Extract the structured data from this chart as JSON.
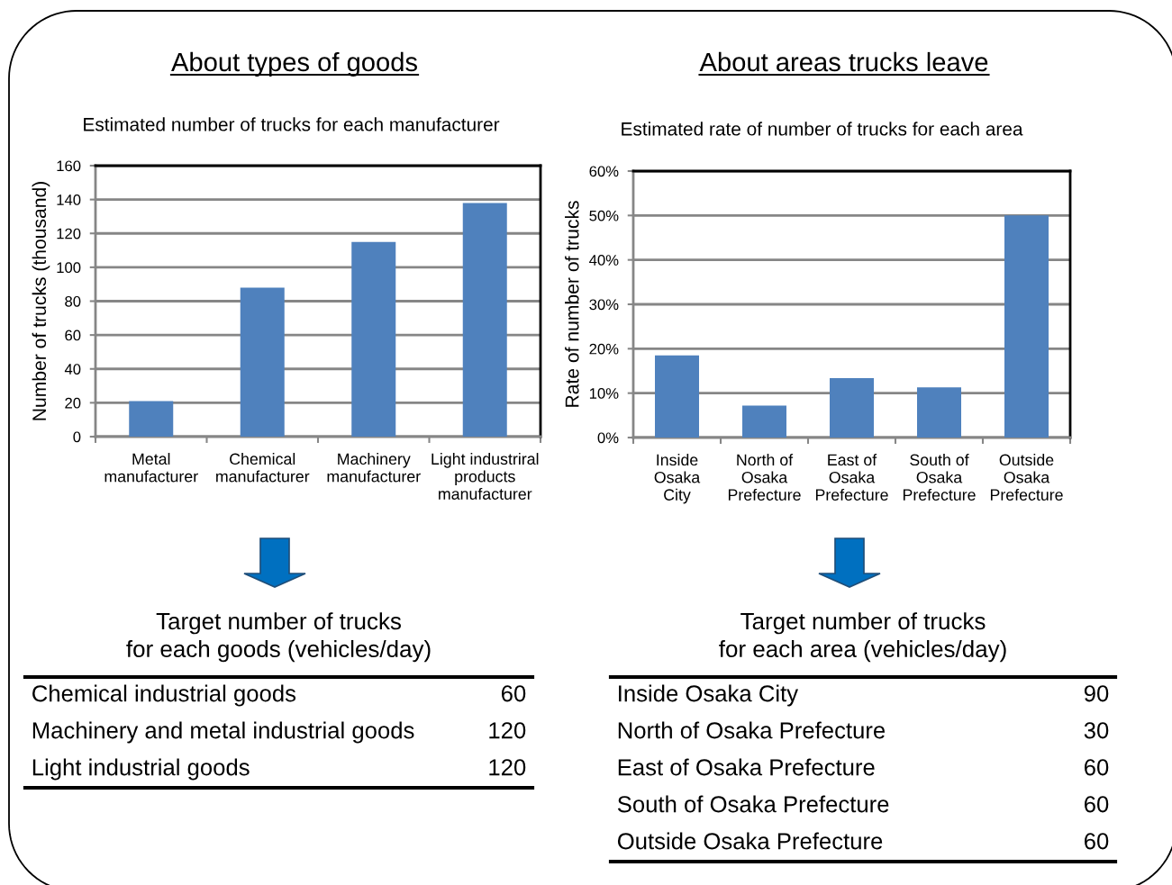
{
  "chart_data": [
    {
      "type": "bar",
      "title": "About types of goods",
      "subtitle": "Estimated number of trucks for each manufacturer",
      "ylabel": "Number of trucks (thousand)",
      "categories": [
        "Metal\nmanufacturer",
        "Chemical\nmanufacturer",
        "Machinery\nmanufacturer",
        "Light industriral\nproducts\nmanufacturer"
      ],
      "values": [
        21,
        88,
        115,
        138
      ],
      "color": "#4f81bd",
      "ylim": [
        0,
        160
      ],
      "yticks": [
        0,
        20,
        40,
        60,
        80,
        100,
        120,
        140,
        160
      ],
      "grid": "y"
    },
    {
      "type": "bar",
      "title": "About areas trucks leave",
      "subtitle": "Estimated rate of number of trucks for each area",
      "ylabel": "Rate of number of trucks",
      "categories": [
        "Inside\nOsaka\nCity",
        "North of\nOsaka\nPrefecture",
        "East of\nOsaka\nPrefecture",
        "South of\nOsaka\nPrefecture",
        "Outside\nOsaka\nPrefecture"
      ],
      "values": [
        18.5,
        7.2,
        13.4,
        11.3,
        50
      ],
      "color": "#4f81bd",
      "ylim": [
        0,
        60
      ],
      "yticks": [
        {
          "value": 0,
          "label": "0%"
        },
        {
          "value": 10,
          "label": "10%"
        },
        {
          "value": 20,
          "label": "20%"
        },
        {
          "value": 30,
          "label": "30%"
        },
        {
          "value": 40,
          "label": "40%"
        },
        {
          "value": 50,
          "label": "50%"
        },
        {
          "value": 60,
          "label": "60%"
        }
      ],
      "grid": "y"
    },
    {
      "type": "other",
      "title": "Target number of trucks\nfor each goods (vehicles/day)",
      "categories": [
        "Chemical industrial goods",
        "Machinery and metal industrial goods",
        "Light industrial goods"
      ],
      "values": [
        60,
        120,
        120
      ],
      "data_labels": true
    },
    {
      "type": "other",
      "title": "Target number of trucks\nfor each area (vehicles/day)",
      "categories": [
        "Inside Osaka City",
        "North of Osaka Prefecture",
        "East of Osaka Prefecture",
        "South of Osaka Prefecture",
        "Outside Osaka Prefecture"
      ],
      "values": [
        90,
        30,
        60,
        60,
        60
      ],
      "data_labels": true
    }
  ]
}
